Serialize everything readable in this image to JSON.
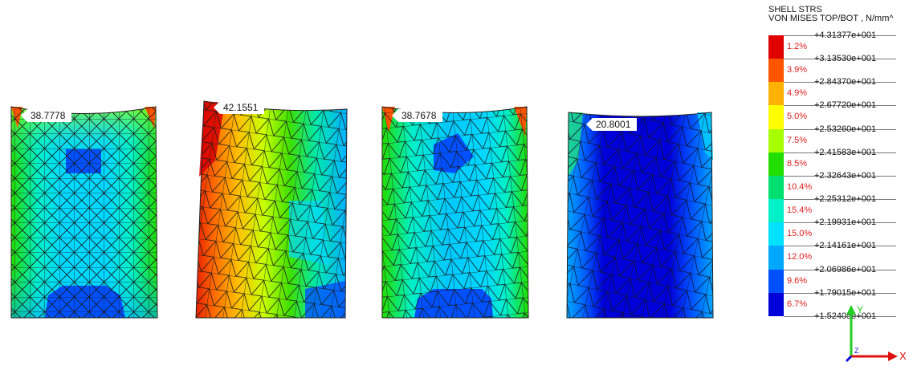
{
  "legend": {
    "title_line1": "SHELL STRS",
    "title_line2": "VON MISES TOP/BOT , N/mm^",
    "values": [
      "+4.31377e+001",
      "+3.13530e+001",
      "+2.84370e+001",
      "+2.67720e+001",
      "+2.53260e+001",
      "+2.41583e+001",
      "+2.32643e+001",
      "+2.25312e+001",
      "+2.19931e+001",
      "+2.14161e+001",
      "+2.06986e+001",
      "+1.79015e+001",
      "+1.52405e+001"
    ],
    "percents": [
      "1.2%",
      "3.9%",
      "4.9%",
      "5.0%",
      "7.5%",
      "8.5%",
      "10.4%",
      "15.4%",
      "15.0%",
      "12.0%",
      "9.6%",
      "6.7%"
    ],
    "colors": [
      "#e00000",
      "#ff5500",
      "#ffb000",
      "#ffff00",
      "#a8ff00",
      "#22dd00",
      "#00e070",
      "#00f0c8",
      "#00e0ff",
      "#00a8ff",
      "#0050ff",
      "#0000d8"
    ]
  },
  "plates": [
    {
      "name": "plate-1",
      "max_label": "38.7778"
    },
    {
      "name": "plate-2",
      "max_label": "42.1551"
    },
    {
      "name": "plate-3",
      "max_label": "38.7678"
    },
    {
      "name": "plate-4",
      "max_label": "20.8001"
    }
  ],
  "axes": {
    "x_label": "X",
    "y_label": "Y",
    "z_label": "Z"
  }
}
